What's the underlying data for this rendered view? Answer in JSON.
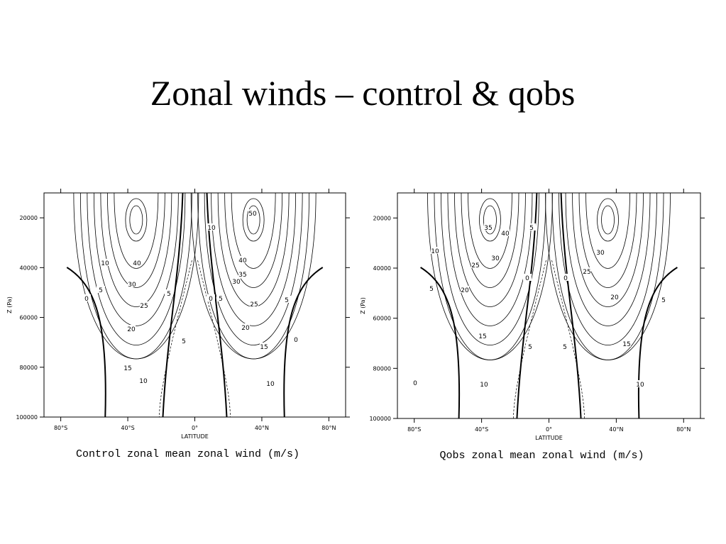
{
  "title": "Zonal winds – control & qobs",
  "chart_data": [
    {
      "type": "contour",
      "title": "Control zonal mean zonal wind (m/s)",
      "xlabel": "LATITUDE",
      "ylabel": "Z (Pa)",
      "xlim": [
        -90,
        90
      ],
      "ylim": [
        10000,
        100000
      ],
      "xticks": [
        {
          "value": -80,
          "label": "80°S"
        },
        {
          "value": -40,
          "label": "40°S"
        },
        {
          "value": 0,
          "label": "0°"
        },
        {
          "value": 40,
          "label": "40°N"
        },
        {
          "value": 80,
          "label": "80°N"
        }
      ],
      "yticks": [
        20000,
        40000,
        60000,
        80000,
        100000
      ],
      "contour_labels": [
        10,
        5,
        0,
        40,
        30,
        25,
        20,
        15,
        10,
        5,
        5,
        10,
        50,
        40,
        35,
        30,
        0,
        5,
        25,
        20,
        5,
        0,
        15,
        10
      ]
    },
    {
      "type": "contour",
      "title": "Qobs zonal mean zonal wind (m/s)",
      "xlabel": "LATITUDE",
      "ylabel": "Z (Pa)",
      "xlim": [
        -90,
        90
      ],
      "ylim": [
        10000,
        100000
      ],
      "xticks": [
        {
          "value": -80,
          "label": "80°S"
        },
        {
          "value": -40,
          "label": "40°S"
        },
        {
          "value": 0,
          "label": "0°"
        },
        {
          "value": 40,
          "label": "40°N"
        },
        {
          "value": 80,
          "label": "80°N"
        }
      ],
      "yticks": [
        20000,
        40000,
        60000,
        80000,
        100000
      ],
      "contour_labels": [
        35,
        40,
        5,
        10,
        25,
        30,
        5,
        20,
        0,
        15,
        10,
        0,
        5,
        0,
        5,
        30,
        25,
        20,
        5,
        15,
        10
      ]
    }
  ]
}
